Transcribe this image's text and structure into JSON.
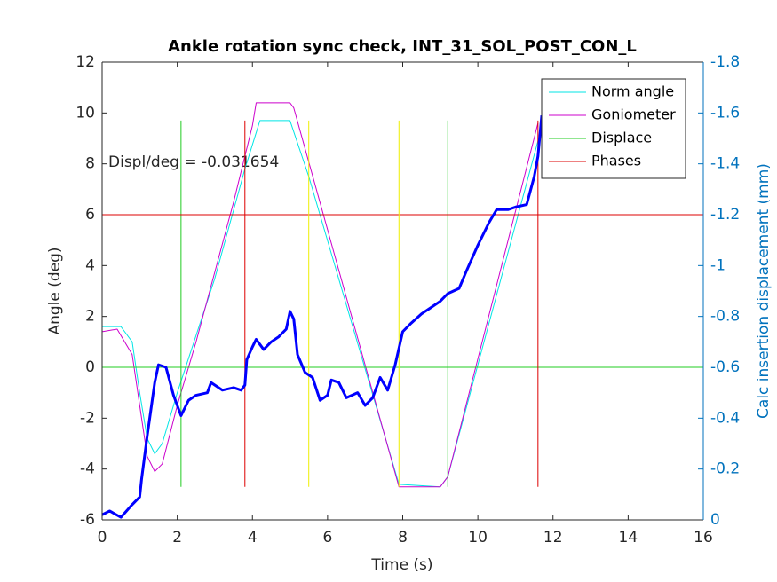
{
  "chart_data": {
    "type": "line",
    "title": "Ankle rotation sync check, INT_31_SOL_POST_CON_L",
    "x_label": "Time (s)",
    "y_label": "Angle (deg)",
    "y2_label": "Calc insertion displacement (mm)",
    "annotation": "Displ/deg = -0.031654",
    "xlim": [
      0,
      16
    ],
    "xticks": [
      0,
      2,
      4,
      6,
      8,
      10,
      12,
      14,
      16
    ],
    "ylim": [
      -6,
      12
    ],
    "yticks": [
      -6,
      -4,
      -2,
      0,
      2,
      4,
      6,
      8,
      10,
      12
    ],
    "y2lim": [
      0,
      -1.8
    ],
    "y2ticks": [
      0,
      -0.2,
      -0.4,
      -0.6,
      -0.8,
      -1,
      -1.2,
      -1.4,
      -1.6,
      -1.8
    ],
    "y2_color": "#0072bd",
    "grid": false,
    "legend": "upper right",
    "series": [
      {
        "name": "Norm angle",
        "color": "#00e5e5",
        "width": 1,
        "x": [
          0,
          0.5,
          0.8,
          1.0,
          1.2,
          1.4,
          1.6,
          2.0,
          3.0,
          3.8,
          4.2,
          5.0,
          5.5,
          7.9,
          9.0,
          9.2,
          11.6,
          11.7
        ],
        "values": [
          1.6,
          1.6,
          1.0,
          -1.0,
          -2.8,
          -3.4,
          -3.0,
          -1.0,
          3.5,
          7.8,
          9.7,
          9.7,
          7.5,
          -4.6,
          -4.7,
          -4.3,
          8.9,
          9.5
        ]
      },
      {
        "name": "Goniometer",
        "color": "#cc00cc",
        "width": 1,
        "x": [
          0,
          0.4,
          0.8,
          1.0,
          1.2,
          1.4,
          1.6,
          2.0,
          2.5,
          3.5,
          4.0,
          4.1,
          5.0,
          5.1,
          7.9,
          9.0,
          9.2,
          11.6
        ],
        "values": [
          1.4,
          1.5,
          0.5,
          -1.5,
          -3.5,
          -4.1,
          -3.8,
          -1.5,
          1.0,
          6.5,
          9.5,
          10.4,
          10.4,
          10.2,
          -4.7,
          -4.7,
          -4.3,
          9.6
        ]
      },
      {
        "name": "Displace",
        "color": "#22cc22",
        "width": 1,
        "x": [
          0,
          16,
          null,
          2.1,
          2.1,
          null,
          9.2,
          9.2
        ],
        "values": [
          0,
          0,
          null,
          -4.7,
          9.7,
          null,
          -4.7,
          9.7
        ]
      },
      {
        "name": "Phases",
        "color": "#dd0000",
        "width": 1,
        "x": [
          0,
          16,
          null,
          3.8,
          3.8,
          null,
          11.6,
          11.6
        ],
        "values": [
          6,
          6,
          null,
          -4.7,
          9.7,
          null,
          -4.7,
          9.7
        ]
      },
      {
        "color": "#eeee00",
        "width": 1,
        "x": [
          5.5,
          5.5,
          null,
          7.9,
          7.9
        ],
        "values": [
          -4.7,
          9.7,
          null,
          -4.7,
          9.7
        ]
      },
      {
        "color": "#0000ff",
        "width": 3,
        "axis": "y2",
        "x": [
          0,
          0.2,
          0.5,
          0.8,
          1.0,
          1.05,
          1.2,
          1.4,
          1.5,
          1.7,
          1.9,
          2.1,
          2.3,
          2.5,
          2.8,
          2.9,
          3.2,
          3.5,
          3.7,
          3.8,
          3.85,
          4.0,
          4.1,
          4.3,
          4.5,
          4.7,
          4.9,
          5.0,
          5.1,
          5.2,
          5.4,
          5.6,
          5.8,
          6.0,
          6.1,
          6.3,
          6.5,
          6.8,
          7.0,
          7.2,
          7.4,
          7.6,
          7.8,
          8.0,
          8.2,
          8.5,
          8.8,
          9.0,
          9.2,
          9.5,
          9.7,
          10.0,
          10.3,
          10.5,
          10.8,
          11.0,
          11.3,
          11.5,
          11.6,
          11.7
        ],
        "values": [
          -0.02,
          -0.035,
          -0.01,
          -0.06,
          -0.09,
          -0.16,
          -0.33,
          -0.54,
          -0.61,
          -0.6,
          -0.49,
          -0.41,
          -0.47,
          -0.49,
          -0.5,
          -0.54,
          -0.51,
          -0.52,
          -0.51,
          -0.53,
          -0.63,
          -0.68,
          -0.71,
          -0.67,
          -0.7,
          -0.72,
          -0.75,
          -0.82,
          -0.79,
          -0.65,
          -0.58,
          -0.56,
          -0.47,
          -0.49,
          -0.55,
          -0.54,
          -0.48,
          -0.5,
          -0.45,
          -0.48,
          -0.56,
          -0.51,
          -0.61,
          -0.74,
          -0.77,
          -0.81,
          -0.84,
          -0.86,
          -0.89,
          -0.91,
          -0.98,
          -1.08,
          -1.17,
          -1.22,
          -1.22,
          -1.23,
          -1.24,
          -1.35,
          -1.43,
          -1.59
        ]
      }
    ]
  }
}
